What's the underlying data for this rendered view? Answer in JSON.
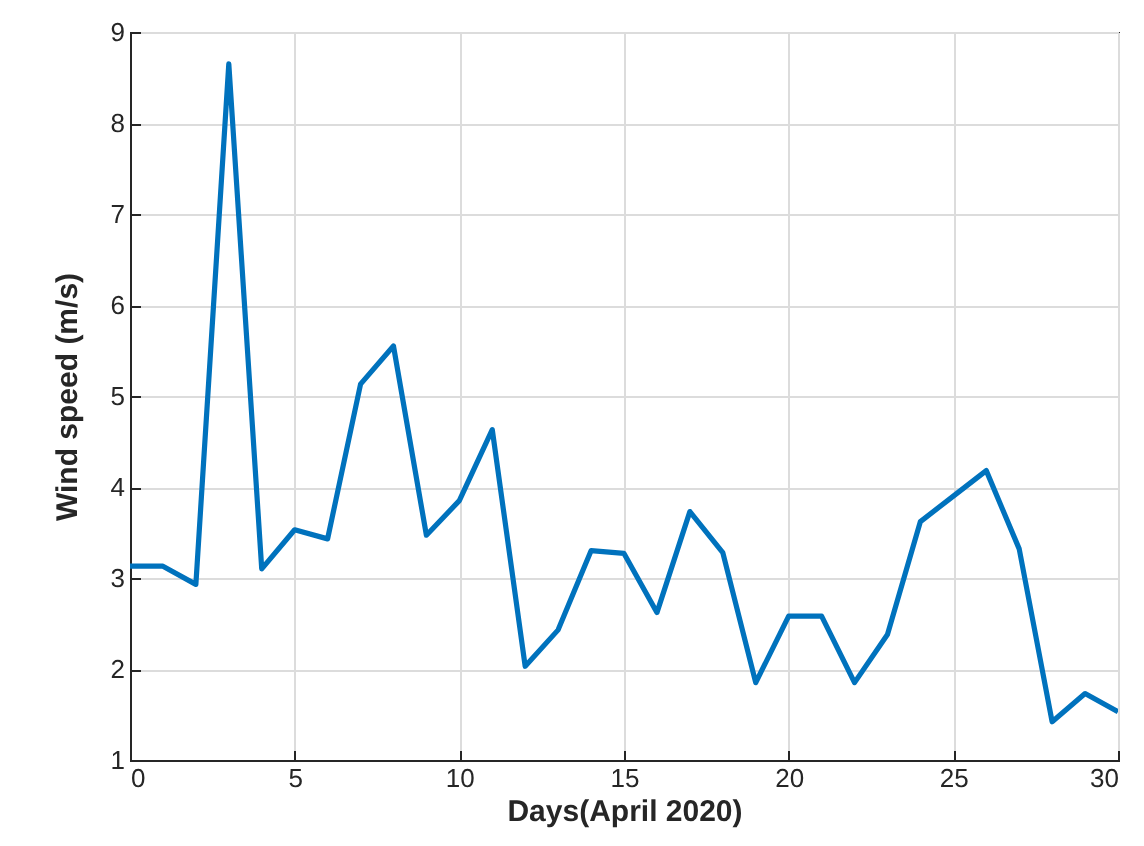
{
  "chart_data": {
    "type": "line",
    "xlabel": "Days(April 2020)",
    "ylabel": "Wind speed (m/s)",
    "x": [
      0,
      1,
      2,
      3,
      4,
      5,
      6,
      7,
      8,
      9,
      10,
      11,
      12,
      13,
      14,
      15,
      16,
      17,
      18,
      19,
      20,
      21,
      22,
      23,
      24,
      25,
      26,
      27,
      28,
      29,
      30
    ],
    "series": [
      {
        "color": "#0072bd",
        "values": [
          3.13,
          3.13,
          2.93,
          8.65,
          3.1,
          3.53,
          3.43,
          5.13,
          5.55,
          3.47,
          3.85,
          4.63,
          2.03,
          2.43,
          3.3,
          3.27,
          2.62,
          3.73,
          3.28,
          1.85,
          2.58,
          2.58,
          1.85,
          2.38,
          3.62,
          3.9,
          4.18,
          3.32,
          1.42,
          1.73,
          1.53
        ]
      }
    ],
    "xlim": [
      0,
      30
    ],
    "xticks": [
      0,
      5,
      10,
      15,
      20,
      25,
      30
    ],
    "ylim": [
      1,
      9
    ],
    "yticks": [
      1,
      2,
      3,
      4,
      5,
      6,
      7,
      8,
      9
    ],
    "grid": true,
    "marker": "none",
    "line_style": "solid"
  }
}
